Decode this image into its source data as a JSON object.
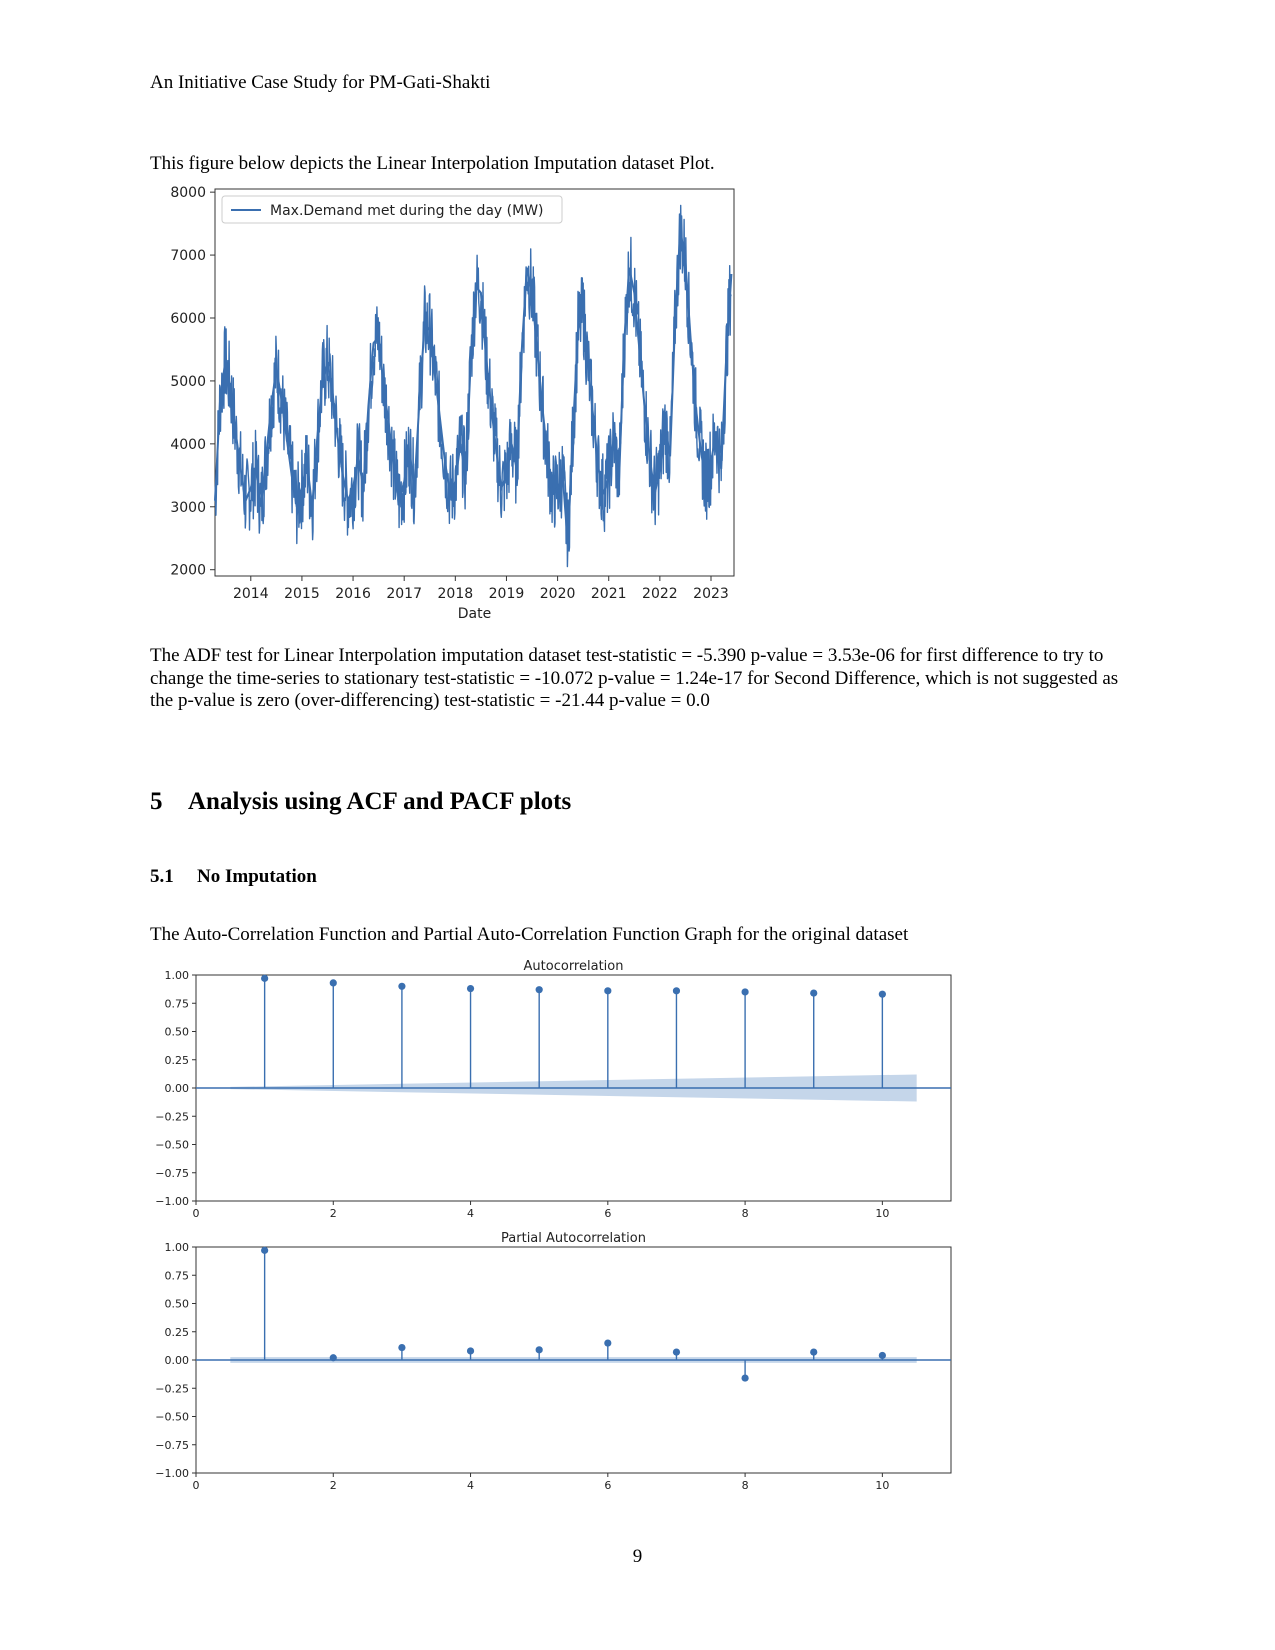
{
  "header": {
    "running_title": "An Initiative Case Study for PM-Gati-Shakti"
  },
  "intro_text": "This figure below depicts the Linear Interpolation Imputation dataset Plot.",
  "adf_text": "The ADF test for Linear Interpolation imputation dataset test-statistic = -5.390 p-value = 3.53e-06 for first difference to try to change the time-series to stationary test-statistic = -10.072 p-value = 1.24e-17 for Second Difference, which is not suggested as the p-value is zero (over-differencing) test-statistic = -21.44 p-value = 0.0",
  "section": {
    "number": "5",
    "title": "Analysis using ACF and PACF plots"
  },
  "subsection": {
    "number": "5.1",
    "title": "No Imputation"
  },
  "acf_caption": "The Auto-Correlation Function and Partial Auto-Correlation Function Graph for the original dataset",
  "page_number": "9",
  "colors": {
    "line": "#3a6fb0",
    "band": "#c5d6ea"
  },
  "chart_data": [
    {
      "type": "line",
      "title": "",
      "xlabel": "Date",
      "ylabel": "",
      "legend": "top-left",
      "ylim": [
        1900,
        8050
      ],
      "xlim": [
        2013.3,
        2023.45
      ],
      "yticks": [
        2000,
        3000,
        4000,
        5000,
        6000,
        7000,
        8000
      ],
      "xticks": [
        2014,
        2015,
        2016,
        2017,
        2018,
        2019,
        2020,
        2021,
        2022,
        2023
      ],
      "series": [
        {
          "name": "Max.Demand met during the day (MW)",
          "note": "approximate seasonal envelope read from the plot (year, MW)",
          "points": [
            [
              2013.3,
              3100
            ],
            [
              2013.4,
              4700
            ],
            [
              2013.5,
              5300
            ],
            [
              2013.6,
              4900
            ],
            [
              2013.7,
              4200
            ],
            [
              2013.8,
              3600
            ],
            [
              2013.9,
              3100
            ],
            [
              2014.0,
              3300
            ],
            [
              2014.1,
              3600
            ],
            [
              2014.2,
              3000
            ],
            [
              2014.3,
              3800
            ],
            [
              2014.4,
              4600
            ],
            [
              2014.5,
              5200
            ],
            [
              2014.6,
              4700
            ],
            [
              2014.7,
              4100
            ],
            [
              2014.8,
              3500
            ],
            [
              2014.9,
              3000
            ],
            [
              2015.0,
              3300
            ],
            [
              2015.1,
              3700
            ],
            [
              2015.2,
              3000
            ],
            [
              2015.3,
              4100
            ],
            [
              2015.4,
              5000
            ],
            [
              2015.5,
              5300
            ],
            [
              2015.6,
              4800
            ],
            [
              2015.7,
              4100
            ],
            [
              2015.8,
              3500
            ],
            [
              2015.9,
              3100
            ],
            [
              2016.0,
              3300
            ],
            [
              2016.1,
              3800
            ],
            [
              2016.2,
              3300
            ],
            [
              2016.3,
              4600
            ],
            [
              2016.4,
              5600
            ],
            [
              2016.5,
              5700
            ],
            [
              2016.6,
              4900
            ],
            [
              2016.7,
              4300
            ],
            [
              2016.8,
              3600
            ],
            [
              2016.9,
              3100
            ],
            [
              2017.0,
              3400
            ],
            [
              2017.1,
              3900
            ],
            [
              2017.2,
              3300
            ],
            [
              2017.3,
              4700
            ],
            [
              2017.4,
              5900
            ],
            [
              2017.5,
              5800
            ],
            [
              2017.6,
              5100
            ],
            [
              2017.7,
              4400
            ],
            [
              2017.8,
              3700
            ],
            [
              2017.9,
              3200
            ],
            [
              2018.0,
              3400
            ],
            [
              2018.1,
              4000
            ],
            [
              2018.2,
              3500
            ],
            [
              2018.3,
              5300
            ],
            [
              2018.4,
              6500
            ],
            [
              2018.5,
              6400
            ],
            [
              2018.6,
              5400
            ],
            [
              2018.7,
              4600
            ],
            [
              2018.8,
              3900
            ],
            [
              2018.9,
              3300
            ],
            [
              2019.0,
              3500
            ],
            [
              2019.1,
              4000
            ],
            [
              2019.2,
              3600
            ],
            [
              2019.3,
              5500
            ],
            [
              2019.4,
              6800
            ],
            [
              2019.5,
              6400
            ],
            [
              2019.6,
              5500
            ],
            [
              2019.7,
              4600
            ],
            [
              2019.8,
              3800
            ],
            [
              2019.9,
              3200
            ],
            [
              2020.0,
              3300
            ],
            [
              2020.1,
              3500
            ],
            [
              2020.2,
              2400
            ],
            [
              2020.3,
              4200
            ],
            [
              2020.4,
              5800
            ],
            [
              2020.5,
              6100
            ],
            [
              2020.6,
              5200
            ],
            [
              2020.7,
              4400
            ],
            [
              2020.8,
              3600
            ],
            [
              2020.9,
              3200
            ],
            [
              2021.0,
              3500
            ],
            [
              2021.1,
              4100
            ],
            [
              2021.2,
              3400
            ],
            [
              2021.3,
              5600
            ],
            [
              2021.4,
              6800
            ],
            [
              2021.5,
              6400
            ],
            [
              2021.6,
              5500
            ],
            [
              2021.7,
              4600
            ],
            [
              2021.8,
              3800
            ],
            [
              2021.9,
              3200
            ],
            [
              2022.0,
              3600
            ],
            [
              2022.1,
              4300
            ],
            [
              2022.2,
              3800
            ],
            [
              2022.3,
              6000
            ],
            [
              2022.4,
              7400
            ],
            [
              2022.5,
              6900
            ],
            [
              2022.6,
              5700
            ],
            [
              2022.7,
              4600
            ],
            [
              2022.8,
              3900
            ],
            [
              2022.9,
              3400
            ],
            [
              2023.0,
              3700
            ],
            [
              2023.1,
              4200
            ],
            [
              2023.2,
              3600
            ],
            [
              2023.3,
              5400
            ],
            [
              2023.4,
              6700
            ]
          ]
        }
      ]
    },
    {
      "type": "bar",
      "title": "Autocorrelation",
      "xlabel": "",
      "ylabel": "",
      "xlim": [
        0,
        11
      ],
      "ylim": [
        -1,
        1
      ],
      "xticks": [
        0,
        2,
        4,
        6,
        8,
        10
      ],
      "yticks": [
        "1.00",
        "0.75",
        "0.50",
        "0.25",
        "0.00",
        "−0.25",
        "−0.50",
        "−0.75",
        "−1.00"
      ],
      "lags": [
        1,
        2,
        3,
        4,
        5,
        6,
        7,
        8,
        9,
        10
      ],
      "values": [
        0.97,
        0.93,
        0.9,
        0.88,
        0.87,
        0.86,
        0.86,
        0.85,
        0.84,
        0.83
      ],
      "confidence_band": {
        "x": [
          0.5,
          10.5
        ],
        "upper": [
          0.01,
          0.12
        ],
        "lower": [
          -0.01,
          -0.12
        ]
      }
    },
    {
      "type": "bar",
      "title": "Partial Autocorrelation",
      "xlabel": "",
      "ylabel": "",
      "xlim": [
        0,
        11
      ],
      "ylim": [
        -1,
        1
      ],
      "xticks": [
        0,
        2,
        4,
        6,
        8,
        10
      ],
      "yticks": [
        "1.00",
        "0.75",
        "0.50",
        "0.25",
        "0.00",
        "−0.25",
        "−0.50",
        "−0.75",
        "−1.00"
      ],
      "lags": [
        1,
        2,
        3,
        4,
        5,
        6,
        7,
        8,
        9,
        10
      ],
      "values": [
        0.97,
        0.02,
        0.11,
        0.08,
        0.09,
        0.15,
        0.07,
        -0.16,
        0.07,
        0.04
      ],
      "confidence_band": {
        "x": [
          0.5,
          10.5
        ],
        "upper": [
          0.025,
          0.025
        ],
        "lower": [
          -0.025,
          -0.025
        ]
      }
    }
  ]
}
